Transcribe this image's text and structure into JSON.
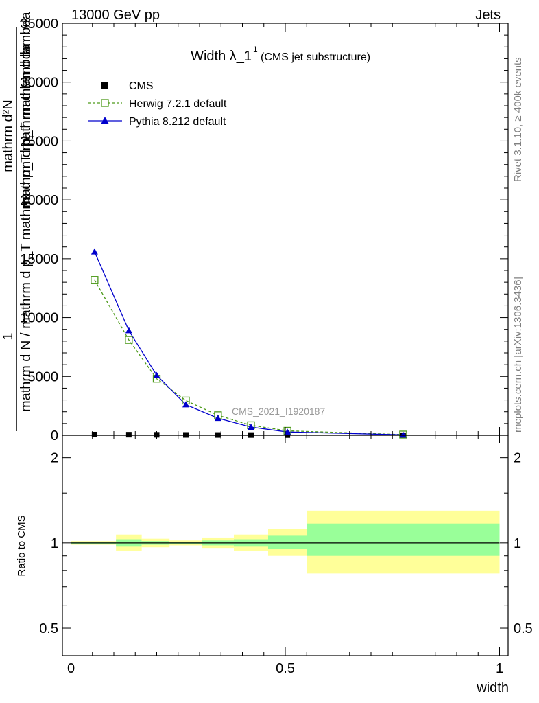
{
  "header": {
    "left_label": "13000 GeV pp",
    "right_label": "Jets"
  },
  "title": {
    "main": "Width λ_1",
    "superscript": "1",
    "sub": "(CMS jet substructure)"
  },
  "side_labels": {
    "rivet": "Rivet 3.1.10, ≥ 400k events",
    "mcplots": "mcplots.cern.ch [arXiv:1306.3436]"
  },
  "watermark": "CMS_2021_I1920187",
  "ylabel_main": {
    "one": "1",
    "numerator": "mathrm d²N",
    "numerator_sup": "2",
    "denominator": "mathrm d N / mathrm d p_T mathrm d p_T mathrm d lambda",
    "denominator_alt": "mathrm d p_T mathrm d lambda"
  },
  "ylabel_ratio": "Ratio to CMS",
  "xlabel": "width",
  "legend": [
    {
      "name": "CMS",
      "color": "#000000",
      "marker": "square-filled",
      "line": "none"
    },
    {
      "name": "Herwig 7.2.1 default",
      "color": "#4d9a1a",
      "marker": "square-open",
      "line": "dashed"
    },
    {
      "name": "Pythia 8.212 default",
      "color": "#0000cc",
      "marker": "triangle-filled",
      "line": "solid"
    }
  ],
  "chart_data": {
    "type": "line",
    "title": "Width λ_1^1 (CMS jet substructure)",
    "xlabel": "width",
    "ylabel": "1 / (mathrm d N / mathrm d p_T) mathrm d²N / (mathrm d p_T mathrm d lambda)",
    "xlim": [
      -0.02,
      1.02
    ],
    "ylim": [
      0,
      35000
    ],
    "x_ticks": [
      0,
      0.5,
      1
    ],
    "x_tick_labels": [
      "0",
      "0.5",
      "1"
    ],
    "y_ticks": [
      0,
      5000,
      10000,
      15000,
      20000,
      25000,
      30000,
      35000
    ],
    "y_tick_labels": [
      "0",
      "5000",
      "10000",
      "15000",
      "20000",
      "25000",
      "30000",
      "35000"
    ],
    "bin_edges": [
      0.0,
      0.105,
      0.165,
      0.23,
      0.305,
      0.38,
      0.46,
      0.55,
      1.0
    ],
    "x": [
      0.055,
      0.135,
      0.2,
      0.268,
      0.343,
      0.42,
      0.505,
      0.775
    ],
    "series": [
      {
        "name": "CMS",
        "values": [
          60,
          50,
          40,
          30,
          25,
          20,
          15,
          5
        ]
      },
      {
        "name": "Herwig 7.2.1 default",
        "values": [
          13200,
          8100,
          4800,
          2950,
          1700,
          850,
          380,
          60
        ]
      },
      {
        "name": "Pythia 8.212 default",
        "values": [
          15600,
          8900,
          5100,
          2600,
          1450,
          700,
          280,
          40
        ]
      }
    ],
    "ratio": {
      "ylabel": "Ratio to CMS",
      "ylim_log": [
        0.4,
        2.4
      ],
      "y_ticks": [
        0.5,
        1,
        2
      ],
      "y_tick_labels": [
        "0.5",
        "1",
        "2"
      ],
      "stat_band": [
        [
          0.99,
          1.01
        ],
        [
          0.97,
          1.03
        ],
        [
          0.985,
          1.015
        ],
        [
          0.99,
          1.01
        ],
        [
          0.98,
          1.02
        ],
        [
          0.97,
          1.03
        ],
        [
          0.95,
          1.06
        ],
        [
          0.9,
          1.17
        ]
      ],
      "total_band": [
        [
          0.985,
          1.015
        ],
        [
          0.94,
          1.07
        ],
        [
          0.965,
          1.035
        ],
        [
          0.98,
          1.02
        ],
        [
          0.96,
          1.045
        ],
        [
          0.94,
          1.07
        ],
        [
          0.9,
          1.12
        ],
        [
          0.78,
          1.3
        ]
      ]
    }
  },
  "colors": {
    "stat_band": "#99ff99",
    "total_band": "#ffff99",
    "herwig": "#4d9a1a",
    "pythia": "#0000cc",
    "data": "#000000",
    "watermark": "#999999",
    "side_label": "#808080"
  }
}
